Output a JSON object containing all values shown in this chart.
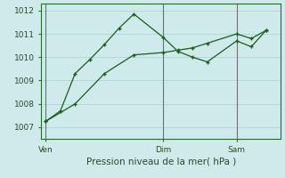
{
  "background_color": "#ceeaea",
  "grid_color": "#b8d8d8",
  "line_color": "#1a5c1a",
  "xlabel": "Pression niveau de la mer( hPa )",
  "ylim": [
    1006.5,
    1012.3
  ],
  "yticks": [
    1007,
    1008,
    1009,
    1010,
    1011,
    1012
  ],
  "line1_x": [
    0,
    1,
    2,
    3,
    4,
    5,
    6,
    8,
    9,
    10,
    11,
    13,
    14,
    15
  ],
  "line1_y": [
    1007.25,
    1007.7,
    1009.3,
    1009.9,
    1010.55,
    1011.25,
    1011.85,
    1010.85,
    1010.25,
    1010.0,
    1009.8,
    1010.7,
    1010.45,
    1011.15
  ],
  "line2_x": [
    0,
    2,
    4,
    6,
    8,
    9,
    10,
    11,
    13,
    14,
    15
  ],
  "line2_y": [
    1007.25,
    1008.0,
    1009.3,
    1010.1,
    1010.2,
    1010.3,
    1010.4,
    1010.6,
    1011.0,
    1010.8,
    1011.15
  ],
  "vline_x": [
    0,
    8,
    13
  ],
  "xtick_positions": [
    0,
    8,
    13
  ],
  "xtick_labels": [
    "Ven",
    "Dim",
    "Sam"
  ],
  "xlim": [
    -0.3,
    16.0
  ]
}
